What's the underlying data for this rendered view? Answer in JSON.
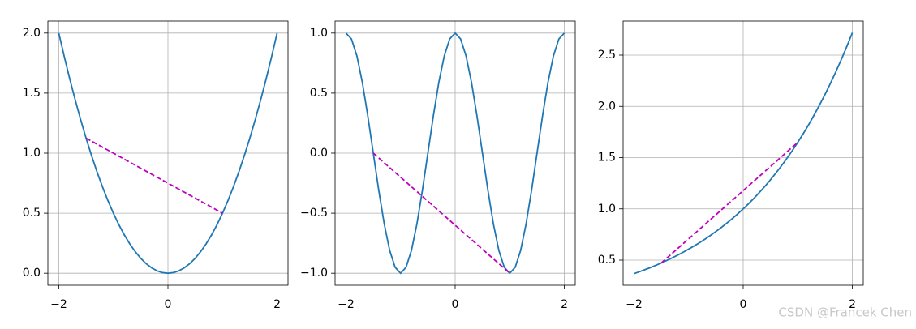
{
  "chart_data": [
    {
      "type": "line",
      "x": [
        -2,
        -1.9,
        -1.8,
        -1.7,
        -1.6,
        -1.5,
        -1.4,
        -1.3,
        -1.2,
        -1.1,
        -1,
        -0.9,
        -0.8,
        -0.7,
        -0.6,
        -0.5,
        -0.4,
        -0.3,
        -0.2,
        -0.1,
        0,
        0.1,
        0.2,
        0.3,
        0.4,
        0.5,
        0.6,
        0.7,
        0.8,
        0.9,
        1,
        1.1,
        1.2,
        1.3,
        1.4,
        1.5,
        1.6,
        1.7,
        1.8,
        1.9,
        2
      ],
      "series": [
        {
          "color": "#1f77b4",
          "values": [
            2,
            1.805,
            1.62,
            1.445,
            1.28,
            1.125,
            0.98,
            0.845,
            0.72,
            0.605,
            0.5,
            0.405,
            0.32,
            0.245,
            0.18,
            0.125,
            0.08,
            0.045,
            0.02,
            0.005,
            0,
            0.005,
            0.02,
            0.045,
            0.08,
            0.125,
            0.18,
            0.245,
            0.32,
            0.405,
            0.5,
            0.605,
            0.72,
            0.845,
            0.98,
            1.125,
            1.28,
            1.445,
            1.62,
            1.805,
            2
          ]
        },
        {
          "color": "#bf00bf",
          "dashed": true,
          "x": [
            -1.5,
            1
          ],
          "values": [
            1.125,
            0.5
          ]
        }
      ],
      "xlim": [
        -2.2,
        2.2
      ],
      "ylim": [
        -0.1,
        2.1
      ],
      "xticks": [
        {
          "value": -2,
          "label": "−2"
        },
        0,
        2
      ],
      "yticks": [
        {
          "value": 0,
          "label": "0.0"
        },
        0.5,
        {
          "value": 1,
          "label": "1.0"
        },
        1.5,
        {
          "value": 2,
          "label": "2.0"
        }
      ],
      "grid": true
    },
    {
      "type": "line",
      "x": [
        -2,
        -1.9,
        -1.8,
        -1.7,
        -1.6,
        -1.5,
        -1.4,
        -1.3,
        -1.2,
        -1.1,
        -1,
        -0.9,
        -0.8,
        -0.7,
        -0.6,
        -0.5,
        -0.4,
        -0.3,
        -0.2,
        -0.1,
        0,
        0.1,
        0.2,
        0.3,
        0.4,
        0.5,
        0.6,
        0.7,
        0.8,
        0.9,
        1,
        1.1,
        1.2,
        1.3,
        1.4,
        1.5,
        1.6,
        1.7,
        1.8,
        1.9,
        2
      ],
      "series": [
        {
          "color": "#1f77b4",
          "values": [
            1,
            0.951,
            0.809,
            0.588,
            0.309,
            0,
            -0.309,
            -0.588,
            -0.809,
            -0.951,
            -1,
            -0.951,
            -0.809,
            -0.588,
            -0.309,
            0,
            0.309,
            0.588,
            0.809,
            0.951,
            1,
            0.951,
            0.809,
            0.588,
            0.309,
            0,
            -0.309,
            -0.588,
            -0.809,
            -0.951,
            -1,
            -0.951,
            -0.809,
            -0.588,
            -0.309,
            0,
            0.309,
            0.588,
            0.809,
            0.951,
            1
          ]
        },
        {
          "color": "#bf00bf",
          "dashed": true,
          "x": [
            -1.5,
            1
          ],
          "values": [
            0,
            -1
          ]
        }
      ],
      "xlim": [
        -2.2,
        2.2
      ],
      "ylim": [
        -1.1,
        1.1
      ],
      "xticks": [
        {
          "value": -2,
          "label": "−2"
        },
        0,
        2
      ],
      "yticks": [
        {
          "value": -1,
          "label": "−1.0"
        },
        {
          "value": -0.5,
          "label": "−0.5"
        },
        {
          "value": 0,
          "label": "0.0"
        },
        0.5,
        {
          "value": 1,
          "label": "1.0"
        }
      ],
      "grid": true
    },
    {
      "type": "line",
      "x": [
        -2,
        -1.9,
        -1.8,
        -1.7,
        -1.6,
        -1.5,
        -1.4,
        -1.3,
        -1.2,
        -1.1,
        -1,
        -0.9,
        -0.8,
        -0.7,
        -0.6,
        -0.5,
        -0.4,
        -0.3,
        -0.2,
        -0.1,
        0,
        0.1,
        0.2,
        0.3,
        0.4,
        0.5,
        0.6,
        0.7,
        0.8,
        0.9,
        1,
        1.1,
        1.2,
        1.3,
        1.4,
        1.5,
        1.6,
        1.7,
        1.8,
        1.9,
        2
      ],
      "series": [
        {
          "color": "#1f77b4",
          "values": [
            0.368,
            0.387,
            0.407,
            0.427,
            0.449,
            0.472,
            0.497,
            0.522,
            0.549,
            0.577,
            0.607,
            0.638,
            0.67,
            0.705,
            0.741,
            0.779,
            0.819,
            0.861,
            0.905,
            0.951,
            1,
            1.051,
            1.105,
            1.162,
            1.221,
            1.284,
            1.35,
            1.419,
            1.492,
            1.568,
            1.649,
            1.733,
            1.822,
            1.916,
            2.014,
            2.117,
            2.226,
            2.34,
            2.46,
            2.586,
            2.718
          ]
        },
        {
          "color": "#bf00bf",
          "dashed": true,
          "x": [
            -1.5,
            1
          ],
          "values": [
            0.472,
            1.649
          ]
        }
      ],
      "xlim": [
        -2.2,
        2.2
      ],
      "ylim": [
        0.255,
        2.832
      ],
      "xticks": [
        {
          "value": -2,
          "label": "−2"
        },
        0,
        2
      ],
      "yticks": [
        0.5,
        {
          "value": 1,
          "label": "1.0"
        },
        1.5,
        {
          "value": 2,
          "label": "2.0"
        },
        2.5
      ],
      "grid": true
    }
  ],
  "watermark": "CSDN @Francek Chen"
}
